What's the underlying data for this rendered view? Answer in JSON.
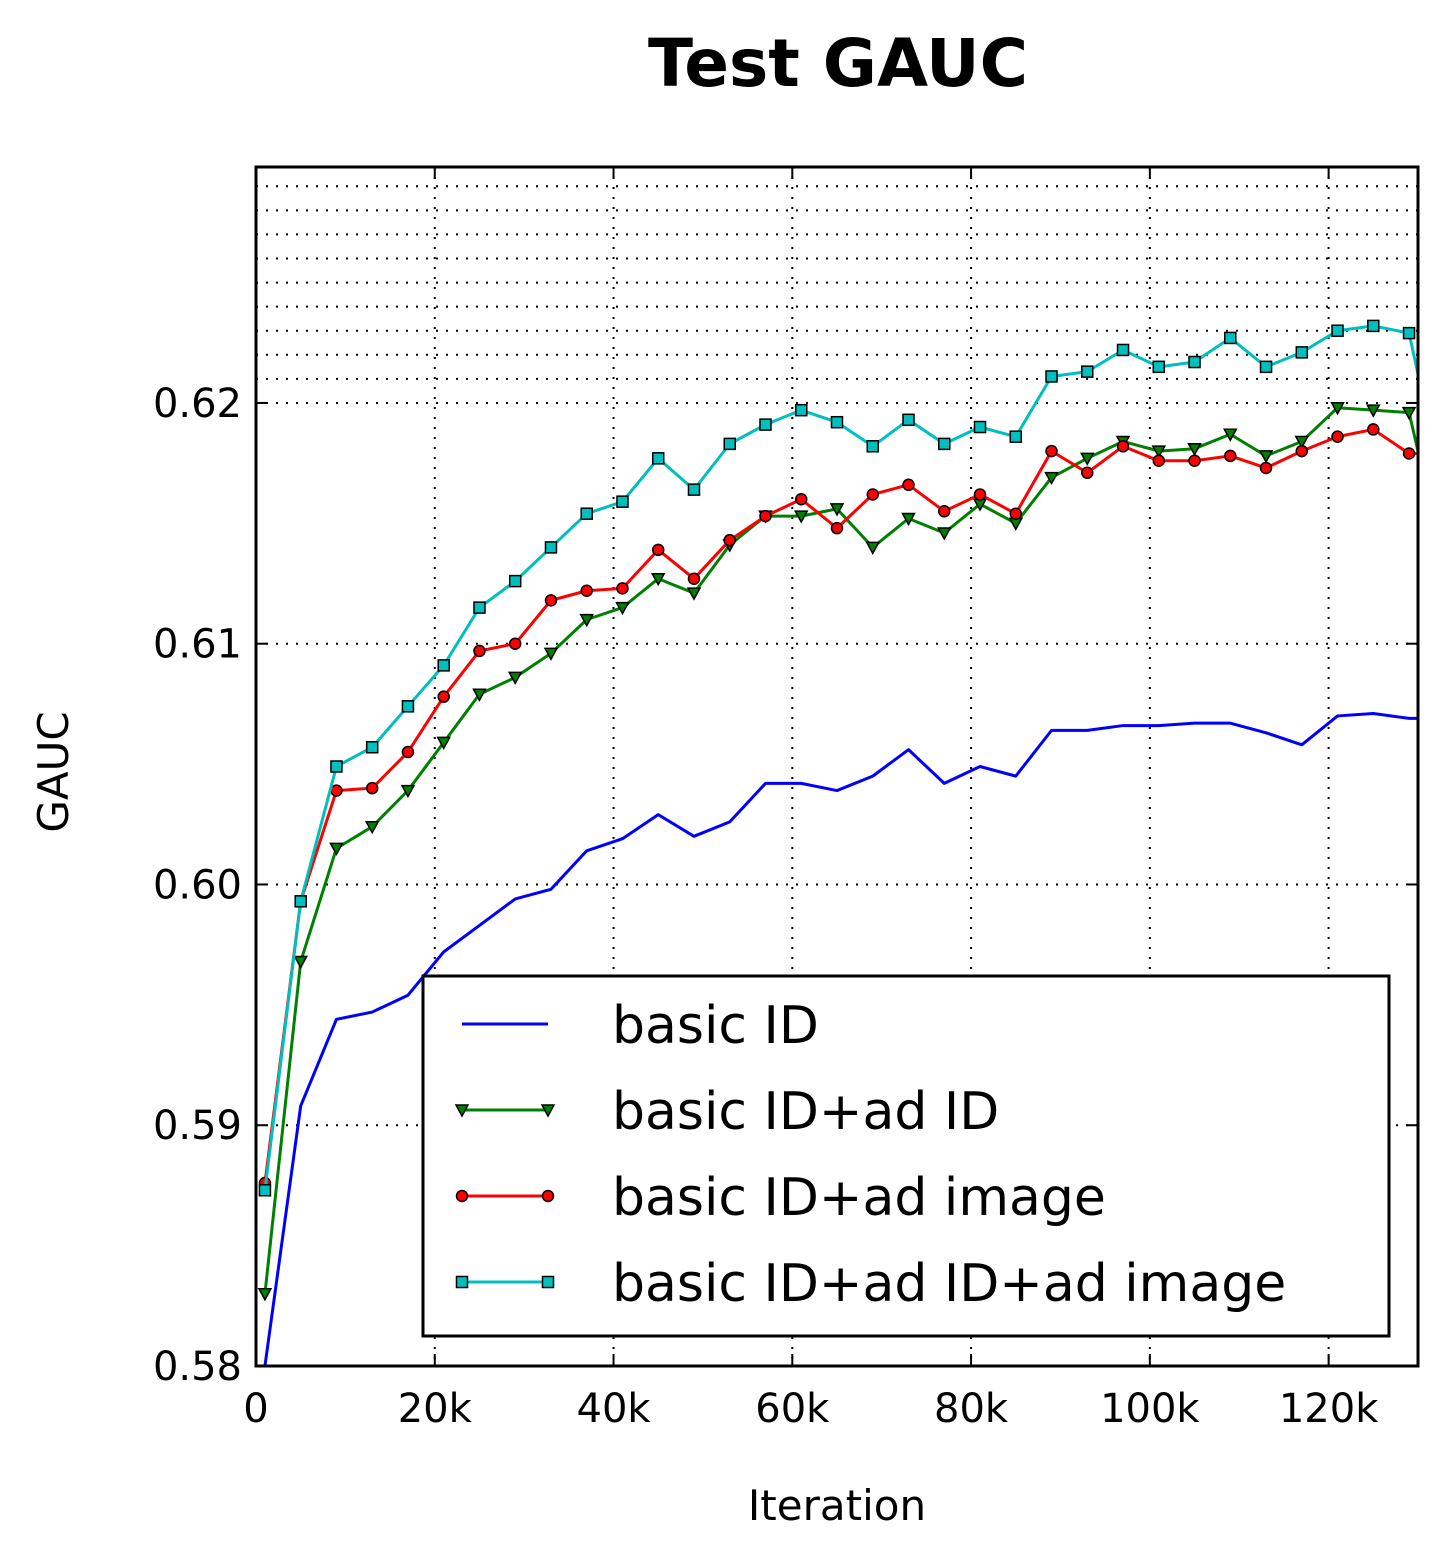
{
  "chart_data": {
    "type": "line",
    "title": "Test GAUC",
    "xlabel": "Iteration",
    "ylabel": "GAUC",
    "xlim": [
      0,
      130000
    ],
    "ylim": [
      0.58,
      0.6298
    ],
    "x_ticks": [
      0,
      20000,
      40000,
      60000,
      80000,
      100000,
      120000
    ],
    "x_tick_labels": [
      "0",
      "20k",
      "40k",
      "60k",
      "80k",
      "100k",
      "120k"
    ],
    "y_ticks": [
      0.58,
      0.59,
      0.6,
      0.61,
      0.62
    ],
    "y_tick_labels": [
      "0.58",
      "0.59",
      "0.60",
      "0.61",
      "0.62"
    ],
    "y_minor_grid": [
      0.621,
      0.622,
      0.623,
      0.624,
      0.625,
      0.626,
      0.627,
      0.628,
      0.629
    ],
    "grid": true,
    "legend_position": "lower-right",
    "x": [
      1000,
      5000,
      9000,
      13000,
      17000,
      21000,
      25000,
      29000,
      33000,
      37000,
      41000,
      45000,
      49000,
      53000,
      57000,
      61000,
      65000,
      69000,
      73000,
      77000,
      81000,
      85000,
      89000,
      93000,
      97000,
      101000,
      105000,
      109000,
      113000,
      117000,
      121000,
      125000,
      129000,
      130000
    ],
    "series": [
      {
        "name": "basic ID",
        "color": "#0000ff",
        "marker": "none",
        "values": [
          0.58,
          0.5908,
          0.5944,
          0.5947,
          0.5954,
          0.5972,
          0.5983,
          0.5994,
          0.5998,
          0.6014,
          0.6019,
          0.6029,
          0.602,
          0.6026,
          0.6042,
          0.6042,
          0.6039,
          0.6045,
          0.6056,
          0.6042,
          0.6049,
          0.6045,
          0.6064,
          0.6064,
          0.6066,
          0.6066,
          0.6067,
          0.6067,
          0.6063,
          0.6058,
          0.607,
          0.6071,
          0.6069,
          0.6069
        ]
      },
      {
        "name": "basic ID+ad ID",
        "color": "#008000",
        "marker": "triangle-down",
        "values": [
          0.583,
          0.5968,
          0.6015,
          0.6024,
          0.6039,
          0.6059,
          0.6079,
          0.6086,
          0.6096,
          0.611,
          0.6115,
          0.6127,
          0.6121,
          0.6141,
          0.6153,
          0.6153,
          0.6156,
          0.614,
          0.6152,
          0.6146,
          0.6158,
          0.615,
          0.6169,
          0.6177,
          0.6184,
          0.618,
          0.6181,
          0.6187,
          0.6178,
          0.6184,
          0.6198,
          0.6197,
          0.6196,
          0.618
        ]
      },
      {
        "name": "basic ID+ad image",
        "color": "#ff0000",
        "marker": "circle",
        "values": [
          0.5876,
          0.5993,
          0.6039,
          0.604,
          0.6055,
          0.6078,
          0.6097,
          0.61,
          0.6118,
          0.6122,
          0.6123,
          0.6139,
          0.6127,
          0.6143,
          0.6153,
          0.616,
          0.6148,
          0.6162,
          0.6166,
          0.6155,
          0.6162,
          0.6154,
          0.618,
          0.6171,
          0.6182,
          0.6176,
          0.6176,
          0.6178,
          0.6173,
          0.618,
          0.6186,
          0.6189,
          0.6179,
          0.6179
        ]
      },
      {
        "name": "basic ID+ad ID+ad image",
        "color": "#00bfbf",
        "marker": "square",
        "values": [
          0.5873,
          0.5993,
          0.6049,
          0.6057,
          0.6074,
          0.6091,
          0.6115,
          0.6126,
          0.614,
          0.6154,
          0.6159,
          0.6177,
          0.6164,
          0.6183,
          0.6191,
          0.6197,
          0.6192,
          0.6182,
          0.6193,
          0.6183,
          0.619,
          0.6186,
          0.6211,
          0.6213,
          0.6222,
          0.6215,
          0.6217,
          0.6227,
          0.6215,
          0.6221,
          0.623,
          0.6232,
          0.6229,
          0.6212
        ]
      }
    ]
  }
}
